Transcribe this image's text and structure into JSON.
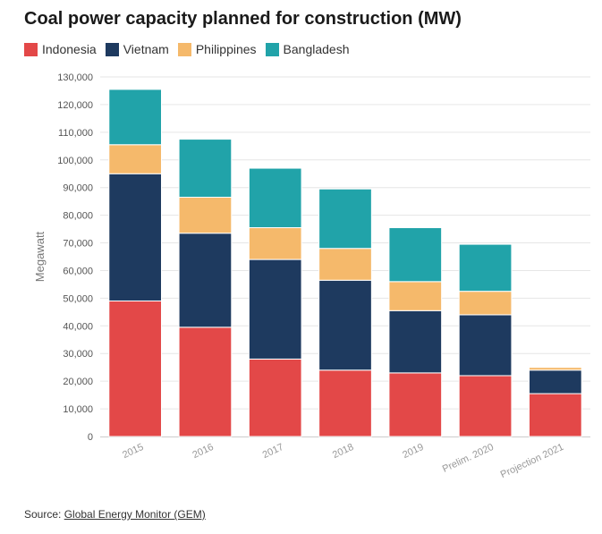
{
  "title": "Coal power capacity planned for construction (MW)",
  "source": {
    "prefix": "Source: ",
    "link_text": "Global Energy Monitor (GEM)"
  },
  "chart_data": {
    "type": "bar",
    "stacked": true,
    "title": "Coal power capacity planned for construction (MW)",
    "xlabel": "",
    "ylabel": "Megawatt",
    "ylim": [
      0,
      130000
    ],
    "y_ticks": [
      "0",
      "10,000",
      "20,000",
      "30,000",
      "40,000",
      "50,000",
      "60,000",
      "70,000",
      "80,000",
      "90,000",
      "100,000",
      "110,000",
      "120,000",
      "130,000"
    ],
    "grid": true,
    "legend_position": "top-left",
    "categories": [
      "2015",
      "2016",
      "2017",
      "2018",
      "2019",
      "Prelim. 2020",
      "Projection 2021"
    ],
    "series": [
      {
        "name": "Indonesia",
        "color": "#e34848",
        "values": [
          49000,
          39500,
          28000,
          24000,
          23000,
          22000,
          15500
        ]
      },
      {
        "name": "Vietnam",
        "color": "#1e3a5f",
        "values": [
          46000,
          34000,
          36000,
          32500,
          22500,
          22000,
          8500
        ]
      },
      {
        "name": "Philippines",
        "color": "#f5b96b",
        "values": [
          10500,
          13000,
          11500,
          11500,
          10500,
          8500,
          1000
        ]
      },
      {
        "name": "Bangladesh",
        "color": "#21a3a9",
        "values": [
          20000,
          21000,
          21500,
          21500,
          19500,
          17000,
          0
        ]
      }
    ]
  }
}
